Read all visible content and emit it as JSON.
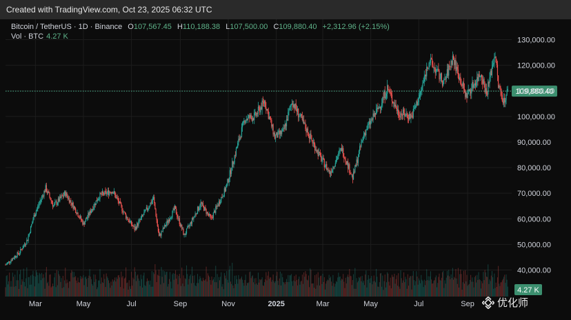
{
  "header": {
    "created_text": "Created with TradingView.com, Oct 23, 2025 06:32 UTC"
  },
  "legend": {
    "symbol": "Bitcoin / TetherUS · 1D · Binance",
    "open_label": "O",
    "open": "107,567.45",
    "high_label": "H",
    "high": "110,188.38",
    "low_label": "L",
    "low": "107,500.00",
    "close_label": "C",
    "close": "109,880.40",
    "change": "+2,312.96 (+2.15%)"
  },
  "volume_legend": {
    "label": "Vol · BTC",
    "value": "4.27 K"
  },
  "price_tag": "109,880.40",
  "volume_tag": "4.27 K",
  "watermark": {
    "text": "优化师",
    "logo": "binance-diamond-icon"
  },
  "colors": {
    "up": "#26a69a",
    "down": "#ef5350",
    "price_line": "#4bb48f",
    "grid": "#1d1d1d"
  },
  "chart_data": {
    "type": "candlestick",
    "grid": true,
    "y_ticks": [
      "130,000.00",
      "120,000.00",
      "110,000.00",
      "100,000.00",
      "90,000.00",
      "80,000.00",
      "70,000.00",
      "60,000.00",
      "50,000.00",
      "40,000.00"
    ],
    "y_tick_values": [
      130000,
      120000,
      110000,
      100000,
      90000,
      80000,
      70000,
      60000,
      50000,
      40000
    ],
    "ylim": [
      35500,
      133000
    ],
    "x_ticks": [
      {
        "label": "Mar",
        "date": "2024-03-01",
        "bold": false
      },
      {
        "label": "May",
        "date": "2024-05-01",
        "bold": false
      },
      {
        "label": "Jul",
        "date": "2024-07-01",
        "bold": false
      },
      {
        "label": "Sep",
        "date": "2024-09-01",
        "bold": false
      },
      {
        "label": "Nov",
        "date": "2024-11-01",
        "bold": false
      },
      {
        "label": "2025",
        "date": "2025-01-01",
        "bold": true
      },
      {
        "label": "Mar",
        "date": "2025-03-01",
        "bold": false
      },
      {
        "label": "May",
        "date": "2025-05-01",
        "bold": false
      },
      {
        "label": "Jul",
        "date": "2025-07-01",
        "bold": false
      },
      {
        "label": "Sep",
        "date": "2025-09-01",
        "bold": false
      }
    ],
    "xlim": [
      "2024-01-23",
      "2025-10-27"
    ],
    "current_price": 109880.4,
    "close_series": [
      {
        "date": "2024-01-23",
        "close": 42000
      },
      {
        "date": "2024-02-10",
        "close": 47000
      },
      {
        "date": "2024-02-20",
        "close": 52000
      },
      {
        "date": "2024-02-28",
        "close": 61000
      },
      {
        "date": "2024-03-14",
        "close": 72000
      },
      {
        "date": "2024-03-24",
        "close": 65000
      },
      {
        "date": "2024-04-08",
        "close": 70000
      },
      {
        "date": "2024-04-20",
        "close": 64000
      },
      {
        "date": "2024-05-01",
        "close": 58000
      },
      {
        "date": "2024-05-21",
        "close": 69000
      },
      {
        "date": "2024-06-07",
        "close": 71000
      },
      {
        "date": "2024-06-24",
        "close": 61000
      },
      {
        "date": "2024-07-05",
        "close": 56000
      },
      {
        "date": "2024-07-29",
        "close": 68000
      },
      {
        "date": "2024-08-05",
        "close": 53000
      },
      {
        "date": "2024-08-25",
        "close": 64000
      },
      {
        "date": "2024-09-06",
        "close": 53500
      },
      {
        "date": "2024-09-27",
        "close": 66000
      },
      {
        "date": "2024-10-10",
        "close": 60000
      },
      {
        "date": "2024-10-29",
        "close": 72000
      },
      {
        "date": "2024-11-12",
        "close": 88000
      },
      {
        "date": "2024-11-22",
        "close": 99000
      },
      {
        "date": "2024-12-05",
        "close": 100000
      },
      {
        "date": "2024-12-17",
        "close": 106000
      },
      {
        "date": "2024-12-30",
        "close": 92000
      },
      {
        "date": "2025-01-10",
        "close": 94000
      },
      {
        "date": "2025-01-21",
        "close": 106000
      },
      {
        "date": "2025-02-03",
        "close": 98000
      },
      {
        "date": "2025-02-26",
        "close": 84000
      },
      {
        "date": "2025-03-10",
        "close": 78000
      },
      {
        "date": "2025-03-25",
        "close": 87500
      },
      {
        "date": "2025-04-08",
        "close": 76000
      },
      {
        "date": "2025-04-22",
        "close": 93000
      },
      {
        "date": "2025-05-12",
        "close": 104000
      },
      {
        "date": "2025-05-22",
        "close": 111000
      },
      {
        "date": "2025-06-05",
        "close": 101500
      },
      {
        "date": "2025-06-22",
        "close": 100000
      },
      {
        "date": "2025-07-03",
        "close": 109000
      },
      {
        "date": "2025-07-14",
        "close": 122000
      },
      {
        "date": "2025-08-02",
        "close": 113000
      },
      {
        "date": "2025-08-13",
        "close": 123000
      },
      {
        "date": "2025-08-30",
        "close": 108000
      },
      {
        "date": "2025-09-18",
        "close": 117000
      },
      {
        "date": "2025-09-25",
        "close": 109000
      },
      {
        "date": "2025-10-06",
        "close": 125000
      },
      {
        "date": "2025-10-10",
        "close": 112000
      },
      {
        "date": "2025-10-17",
        "close": 106000
      },
      {
        "date": "2025-10-22",
        "close": 109880.4
      }
    ]
  }
}
